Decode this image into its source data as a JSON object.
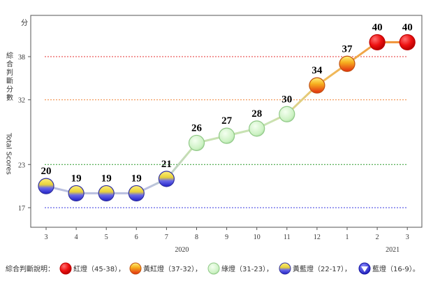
{
  "chart_data": {
    "type": "line",
    "ylabel_cn": "綜合判斷分數",
    "ylabel_en": "Total Scores",
    "y_unit_label": "分",
    "yticks": [
      17,
      23,
      32,
      38
    ],
    "x": [
      "3",
      "4",
      "5",
      "6",
      "7",
      "8",
      "9",
      "10",
      "11",
      "12",
      "1",
      "2",
      "3"
    ],
    "values": [
      20,
      19,
      19,
      19,
      21,
      26,
      27,
      28,
      30,
      34,
      37,
      40,
      40
    ],
    "year_labels": [
      {
        "label": "2020",
        "at_index": 4
      },
      {
        "label": "2021",
        "at_index": 11
      }
    ],
    "threshold_lines": [
      {
        "value": 38,
        "color": "#e53030"
      },
      {
        "value": 32,
        "color": "#f08030"
      },
      {
        "value": 23,
        "color": "#2a9a2a"
      },
      {
        "value": 17,
        "color": "#3a3ae0"
      }
    ],
    "legend_title": "綜合判斷說明：",
    "legend": [
      {
        "label": "紅燈（45-38）",
        "signal": "red"
      },
      {
        "label": "黃紅燈（37-32）",
        "signal": "yellow-red"
      },
      {
        "label": "綠燈（31-23）",
        "signal": "green"
      },
      {
        "label": "黃藍燈（22-17）",
        "signal": "yellow-blue"
      },
      {
        "label": "藍燈（16-9）",
        "signal": "blue"
      }
    ],
    "legend_separator": "，",
    "legend_end": "。",
    "grid": false
  }
}
